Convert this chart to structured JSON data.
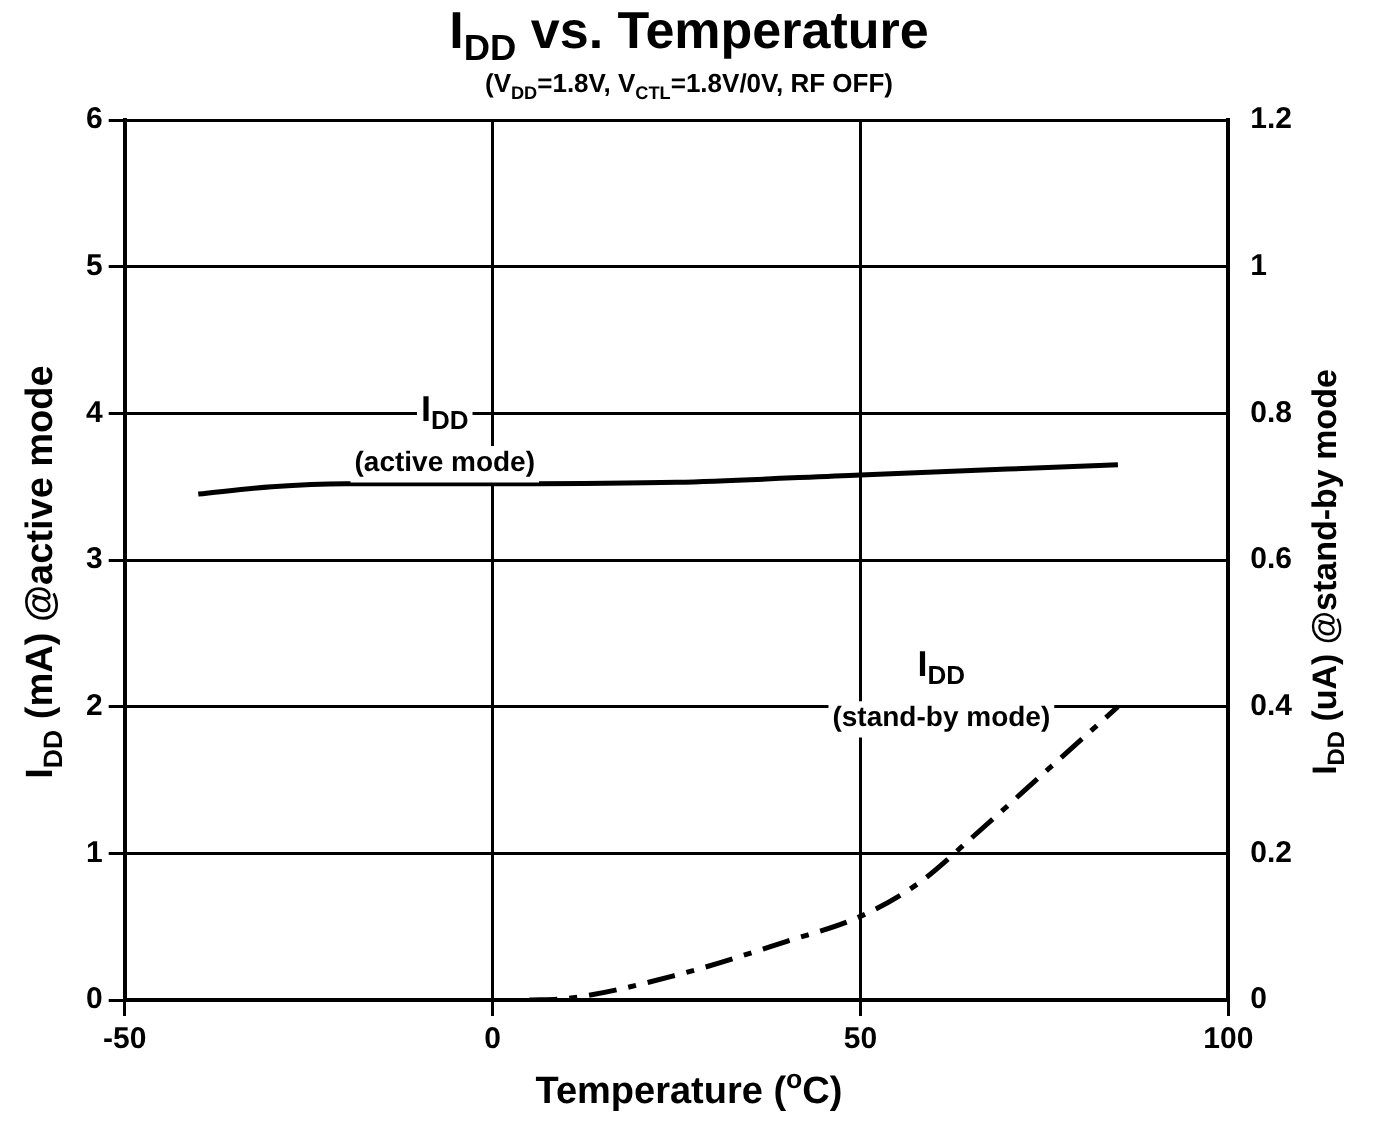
{
  "chart_data": {
    "type": "line",
    "title": "I$_{DD}$ vs. Temperature",
    "subtitle": "(V$_{DD}$=1.8V, V$_{CTL}$=1.8V/0V, RF OFF)",
    "xlabel": "Temperature ($^{o}$C)",
    "ylabel": "I$_{DD}$ (mA) @active mode",
    "y2label": "I$_{DD}$ (uA) @stand-by mode",
    "xlim": [
      -50,
      100
    ],
    "xticks": [
      -50,
      0,
      50,
      100
    ],
    "ylim": [
      0,
      6
    ],
    "yticks": [
      0,
      1,
      2,
      3,
      4,
      5,
      6
    ],
    "y2lim": [
      0,
      1.2
    ],
    "y2ticks": [
      0,
      0.2,
      0.4,
      0.6,
      0.8,
      1,
      1.2
    ],
    "grid": true,
    "legend": false,
    "marker": "none",
    "series": [
      {
        "color": "#000000",
        "line_style": "solid",
        "x": [
          -40,
          -30,
          -20,
          0,
          25,
          50,
          70,
          85
        ],
        "values": [
          3.45,
          3.5,
          3.52,
          3.52,
          3.53,
          3.58,
          3.62,
          3.65
        ]
      },
      {
        "color": "#000000",
        "line_style": "dashed",
        "axis": "y2",
        "x": [
          5,
          10,
          25,
          40,
          50,
          58,
          65,
          75,
          85
        ],
        "values": [
          0,
          0.002,
          0.034,
          0.08,
          0.114,
          0.16,
          0.22,
          0.31,
          0.4
        ]
      }
    ],
    "annotations": [
      "I$_{DD}$\n(active mode)",
      "I$_{DD}$\n(stand-by mode)"
    ]
  }
}
